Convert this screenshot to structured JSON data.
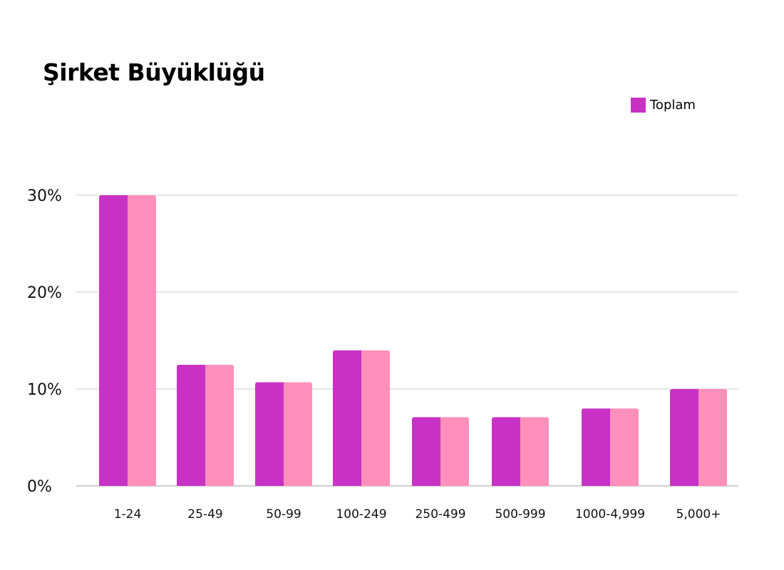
{
  "chart_data": {
    "type": "bar",
    "title": "Şirket Büyüklüğü",
    "xlabel": "",
    "ylabel": "",
    "categories": [
      "1-24",
      "25-49",
      "50-99",
      "100-249",
      "250-499",
      "500-999",
      "1000-4,999",
      "5,000+"
    ],
    "series": [
      {
        "name": "Toplam",
        "values": [
          30,
          12.5,
          10.7,
          14,
          7.1,
          7.1,
          8,
          10
        ]
      }
    ],
    "y_ticks": [
      "0%",
      "10%",
      "20%",
      "30%"
    ],
    "ylim": [
      0,
      30
    ],
    "grid": true,
    "legend_position": "top-right",
    "colors": {
      "bar_left": "#c832c4",
      "bar_right": "#ff8fbb",
      "gridline": "#e6e6e6",
      "baseline": "#d0d0d0"
    }
  }
}
